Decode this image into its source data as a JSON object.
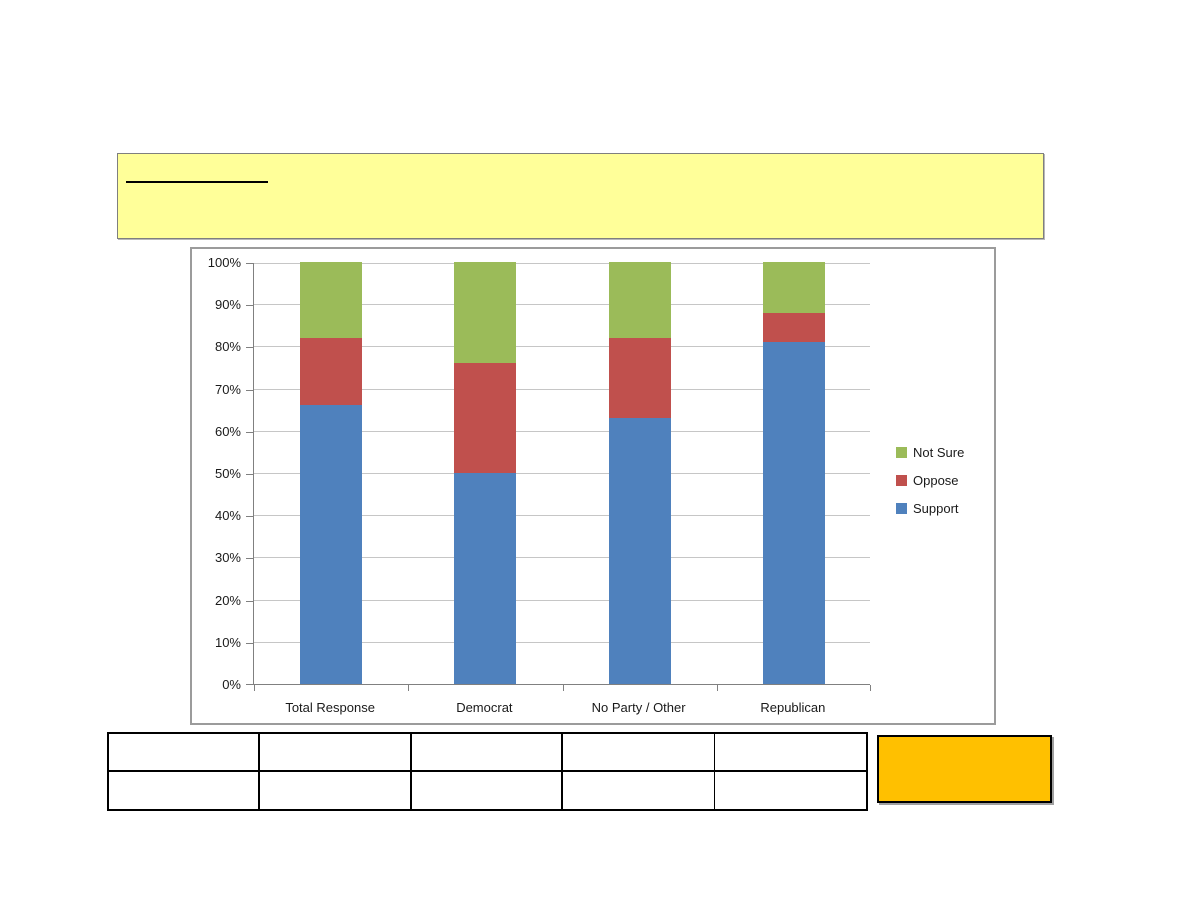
{
  "banner": {
    "bg": "#ffff99",
    "blank_line_text": ""
  },
  "chart_data": {
    "type": "bar",
    "stacked": true,
    "title": "",
    "xlabel": "",
    "ylabel": "",
    "categories": [
      "Total Response",
      "Democrat",
      "No Party / Other",
      "Republican"
    ],
    "series": [
      {
        "name": "Support",
        "color": "#4F81BD",
        "values": [
          66,
          50,
          63,
          81
        ]
      },
      {
        "name": "Oppose",
        "color": "#C0504D",
        "values": [
          16,
          26,
          19,
          7
        ]
      },
      {
        "name": "Not Sure",
        "color": "#9BBB59",
        "values": [
          18,
          24,
          18,
          12
        ]
      }
    ],
    "ylim": [
      0,
      100
    ],
    "ytick_labels": [
      "0%",
      "10%",
      "20%",
      "30%",
      "40%",
      "50%",
      "60%",
      "70%",
      "80%",
      "90%",
      "100%"
    ],
    "grid": true,
    "legend_position": "right",
    "legend_order": [
      "Not Sure",
      "Oppose",
      "Support"
    ]
  },
  "bottom_table": {
    "rows": [
      [
        "",
        "",
        "",
        "",
        ""
      ],
      [
        "",
        "",
        "",
        "",
        ""
      ]
    ]
  },
  "highlight_box": {
    "bg": "#FFC000",
    "label": ""
  }
}
